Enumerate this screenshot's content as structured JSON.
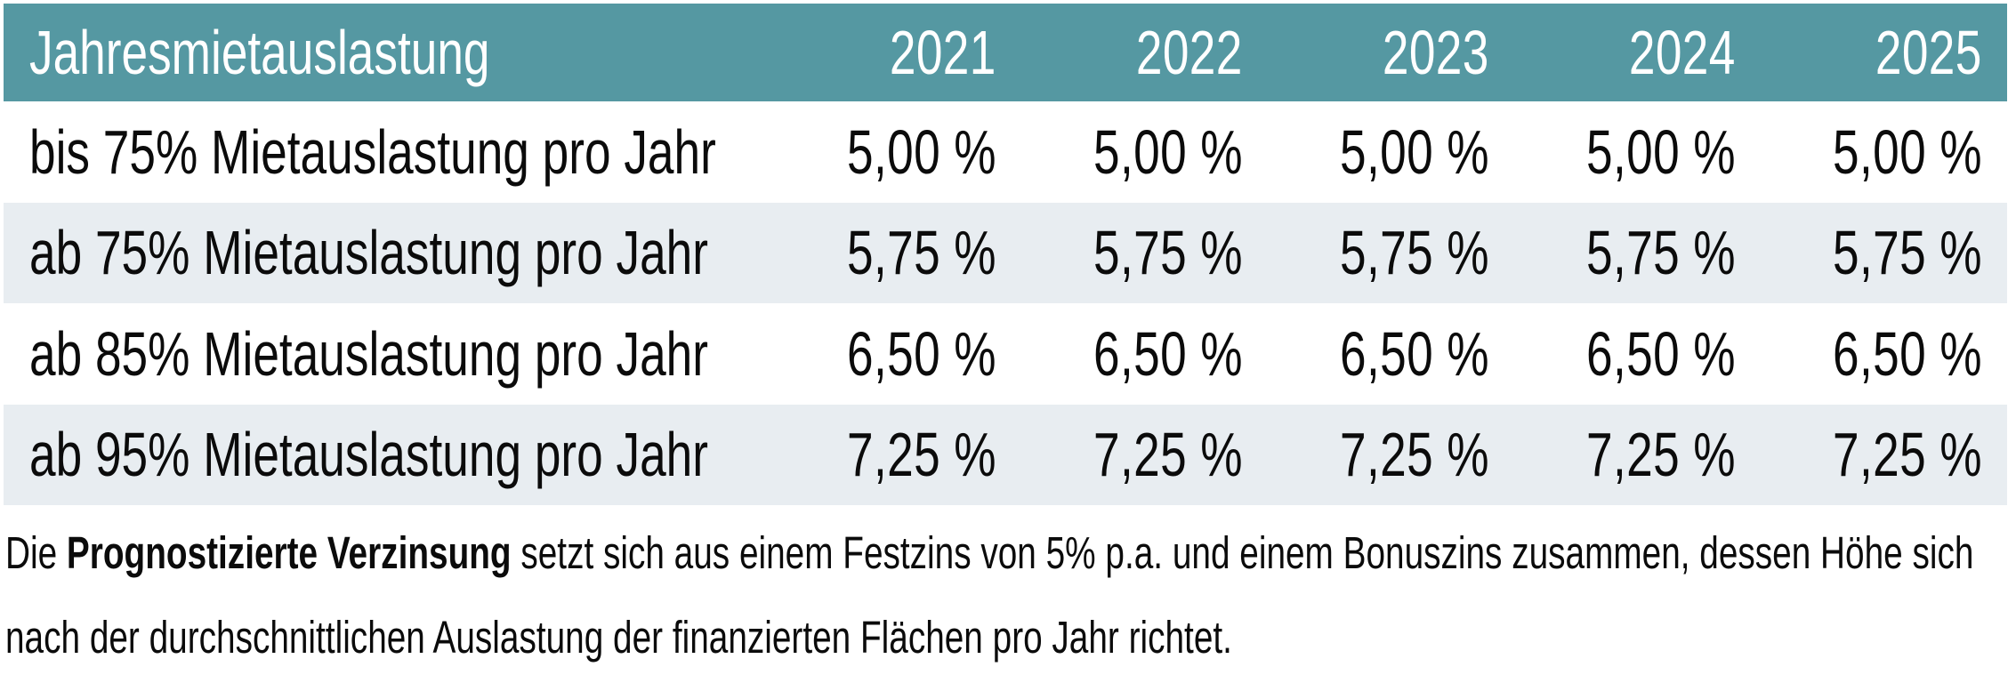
{
  "chart_data": {
    "type": "table",
    "title": "Jahresmietauslastung",
    "header": {
      "label": "Jahresmietauslastung",
      "years": [
        "2021",
        "2022",
        "2023",
        "2024",
        "2025"
      ]
    },
    "rows": [
      {
        "label": "bis 75% Mietauslastung pro Jahr",
        "values": [
          "5,00 %",
          "5,00 %",
          "5,00 %",
          "5,00 %",
          "5,00 %"
        ]
      },
      {
        "label": "ab 75% Mietauslastung pro Jahr",
        "values": [
          "5,75 %",
          "5,75 %",
          "5,75 %",
          "5,75 %",
          "5,75 %"
        ]
      },
      {
        "label": "ab 85% Mietauslastung pro Jahr",
        "values": [
          "6,50 %",
          "6,50 %",
          "6,50 %",
          "6,50 %",
          "6,50 %"
        ]
      },
      {
        "label": "ab 95% Mietauslastung pro Jahr",
        "values": [
          "7,25 %",
          "7,25 %",
          "7,25 %",
          "7,25 %",
          "7,25 %"
        ]
      }
    ],
    "footnote": {
      "prefix": "Die ",
      "bold": "Prognostizierte Verzinsung",
      "line1_rest": " setzt sich aus einem Festzins von 5% p.a. und einem Bonuszins zusammen, dessen Höhe sich",
      "line2": "nach der durchschnittlichen Auslastung der finanzierten Flächen pro Jahr richtet."
    }
  },
  "colors": {
    "header_bg": "#5598a2",
    "header_text": "#ffffff",
    "row_alt_bg": "#e8edf1",
    "body_text": "#0b0b0b"
  }
}
